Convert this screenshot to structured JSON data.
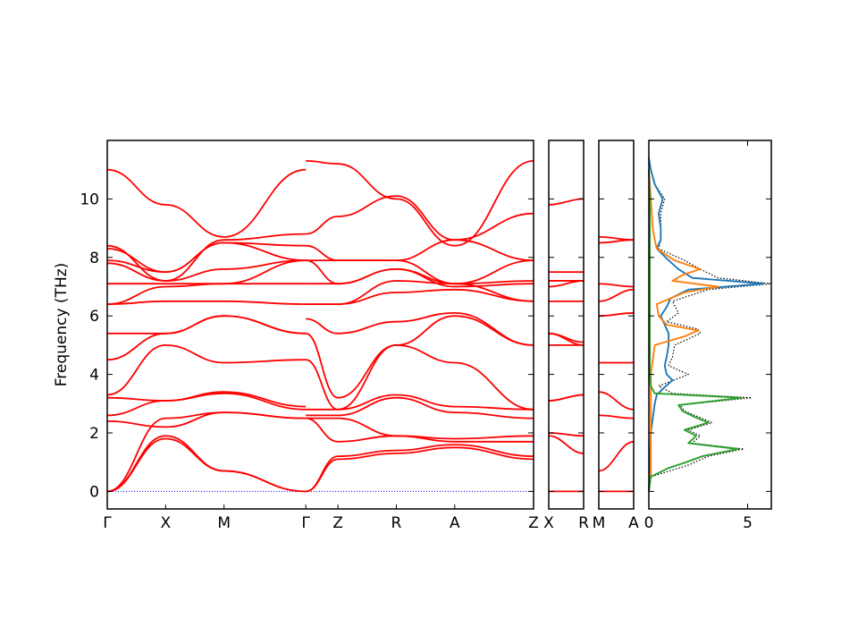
{
  "chart_data": {
    "type": "line",
    "ylabel": "Frequency (THz)",
    "ylim": [
      -0.6,
      12.0
    ],
    "yticks": [
      0,
      2,
      4,
      6,
      8,
      10
    ],
    "grid": false,
    "colors": {
      "bands": "#ff0000",
      "zero_line": "#0000ff",
      "dos_total": "#000000",
      "dos_blue": "#1f77b4",
      "dos_orange": "#ff7f0e",
      "dos_green": "#2ca02c"
    },
    "band_panels": [
      {
        "labels": [
          "Γ",
          "X",
          "M",
          "Γ",
          "Z",
          "R",
          "A",
          "Z"
        ],
        "label_positions": [
          0,
          1,
          2,
          3.4,
          3.95,
          4.95,
          5.95,
          7.3
        ],
        "xlim": [
          0,
          7.3
        ],
        "segments": [
          {
            "x": [
              0,
              1,
              2,
              3.4
            ],
            "bands": [
              [
                0,
                1.8,
                0.7,
                0
              ],
              [
                0,
                1.9,
                0.7,
                0
              ],
              [
                0,
                2.5,
                2.7,
                2.5
              ],
              [
                2.4,
                2.2,
                2.7,
                2.5
              ],
              [
                2.6,
                3.1,
                3.35,
                2.8
              ],
              [
                3.2,
                3.1,
                3.4,
                2.9
              ],
              [
                3.3,
                5.0,
                4.4,
                4.5
              ],
              [
                4.5,
                5.4,
                6.0,
                5.4
              ],
              [
                5.4,
                5.4,
                6.0,
                5.4
              ],
              [
                6.4,
                6.5,
                6.5,
                6.4
              ],
              [
                6.4,
                7.0,
                7.1,
                7.9
              ],
              [
                7.1,
                7.1,
                7.1,
                7.1
              ],
              [
                7.8,
                7.2,
                7.6,
                7.9
              ],
              [
                7.9,
                7.5,
                8.5,
                7.9
              ],
              [
                8.3,
                7.5,
                8.5,
                8.4
              ],
              [
                8.4,
                7.2,
                8.6,
                8.8
              ],
              [
                11.0,
                9.8,
                8.7,
                11.0
              ]
            ]
          },
          {
            "x": [
              3.4,
              3.95,
              4.95,
              5.95,
              7.3
            ],
            "bands": [
              [
                0,
                1.1,
                1.3,
                1.5,
                1.1
              ],
              [
                0,
                1.2,
                1.4,
                1.6,
                1.2
              ],
              [
                2.5,
                1.7,
                1.9,
                1.7,
                1.7
              ],
              [
                2.5,
                2.5,
                1.9,
                1.8,
                1.9
              ],
              [
                2.6,
                2.6,
                3.2,
                2.7,
                2.5
              ],
              [
                2.8,
                2.8,
                3.3,
                2.9,
                2.8
              ],
              [
                4.5,
                2.8,
                5.0,
                4.4,
                2.8
              ],
              [
                5.4,
                3.2,
                5.0,
                6.0,
                5.0
              ],
              [
                5.9,
                5.4,
                5.8,
                6.1,
                5.0
              ],
              [
                6.4,
                6.4,
                6.8,
                6.9,
                6.5
              ],
              [
                6.4,
                6.4,
                7.2,
                7.1,
                6.5
              ],
              [
                7.1,
                7.1,
                7.6,
                7.0,
                7.1
              ],
              [
                7.9,
                7.1,
                7.6,
                7.1,
                7.2
              ],
              [
                7.9,
                7.9,
                7.9,
                7.1,
                7.9
              ],
              [
                8.4,
                7.9,
                7.9,
                8.6,
                7.9
              ],
              [
                8.8,
                9.4,
                10.1,
                8.6,
                9.5
              ],
              [
                11.3,
                11.2,
                10.0,
                8.4,
                11.3
              ]
            ]
          }
        ]
      },
      {
        "labels": [
          "X",
          "R"
        ],
        "label_positions": [
          0,
          1
        ],
        "xlim": [
          0,
          1
        ],
        "segments": [
          {
            "x": [
              0,
              1
            ],
            "bands": [
              [
                0,
                0
              ],
              [
                1.9,
                1.3
              ],
              [
                2.0,
                1.9
              ],
              [
                3.1,
                3.3
              ],
              [
                3.1,
                3.3
              ],
              [
                5.0,
                5.0
              ],
              [
                5.4,
                5.1
              ],
              [
                5.4,
                5.0
              ],
              [
                6.5,
                6.5
              ],
              [
                7.0,
                7.2
              ],
              [
                7.2,
                7.2
              ],
              [
                7.5,
                7.5
              ],
              [
                9.8,
                10.0
              ]
            ]
          }
        ]
      },
      {
        "labels": [
          "M",
          "A"
        ],
        "label_positions": [
          0,
          1
        ],
        "xlim": [
          0,
          1
        ],
        "segments": [
          {
            "x": [
              0,
              1
            ],
            "bands": [
              [
                0,
                0
              ],
              [
                0.7,
                1.7
              ],
              [
                2.6,
                2.5
              ],
              [
                3.4,
                2.8
              ],
              [
                4.4,
                4.4
              ],
              [
                6.0,
                6.1
              ],
              [
                6.5,
                6.9
              ],
              [
                7.1,
                7.0
              ],
              [
                8.5,
                8.6
              ],
              [
                8.7,
                8.6
              ]
            ]
          }
        ]
      }
    ],
    "dos_panel": {
      "xlim": [
        0,
        6.2
      ],
      "xticks": [
        0,
        5
      ],
      "series": [
        {
          "color_key": "dos_total",
          "style": "dotted",
          "freq": [
            0,
            0.5,
            0.9,
            1.2,
            1.45,
            1.65,
            1.9,
            2.1,
            2.35,
            2.55,
            2.75,
            2.95,
            3.2,
            3.35,
            3.6,
            4.0,
            4.3,
            4.6,
            5.0,
            5.4,
            5.55,
            5.8,
            6.1,
            6.5,
            6.9,
            7.1,
            7.3,
            7.6,
            7.9,
            8.3,
            8.6,
            9.0,
            9.5,
            10.0,
            10.5,
            11.0,
            11.4
          ],
          "dos": [
            0,
            0.1,
            2.0,
            3.0,
            4.8,
            2.2,
            2.6,
            2.0,
            3.2,
            2.5,
            1.8,
            1.6,
            5.2,
            1.2,
            0.5,
            2.0,
            1.0,
            1.2,
            1.3,
            2.6,
            2.5,
            0.9,
            1.5,
            1.2,
            3.0,
            6.2,
            3.5,
            2.6,
            1.8,
            0.5,
            0.6,
            0.6,
            0.6,
            0.8,
            0.3,
            0.1,
            0
          ]
        },
        {
          "color_key": "dos_blue",
          "style": "solid",
          "freq": [
            0,
            1.0,
            2.0,
            2.5,
            3.0,
            3.3,
            3.5,
            3.8,
            4.0,
            4.3,
            4.6,
            5.0,
            5.4,
            5.7,
            6.0,
            6.3,
            6.6,
            6.9,
            7.1,
            7.3,
            7.6,
            7.9,
            8.3,
            8.6,
            9.0,
            9.5,
            10.0,
            10.5,
            11.0,
            11.4
          ],
          "dos": [
            0,
            0.05,
            0.1,
            0.2,
            0.3,
            0.4,
            0.7,
            1.2,
            0.9,
            0.8,
            0.9,
            1.0,
            1.0,
            0.8,
            0.6,
            0.9,
            1.1,
            2.0,
            5.8,
            2.2,
            1.5,
            1.0,
            0.4,
            0.6,
            0.6,
            0.5,
            0.7,
            0.3,
            0.1,
            0
          ]
        },
        {
          "color_key": "dos_orange",
          "style": "solid",
          "freq": [
            0,
            0.5,
            1.0,
            2.0,
            3.0,
            3.5,
            4.0,
            4.5,
            5.0,
            5.3,
            5.5,
            5.7,
            6.0,
            6.4,
            6.8,
            7.0,
            7.2,
            7.4,
            7.6,
            7.9,
            8.3,
            8.6,
            9.0,
            10.0,
            10.5,
            11.0
          ],
          "dos": [
            0,
            0.1,
            0.1,
            0.1,
            0.1,
            0.1,
            0.1,
            0.2,
            0.3,
            1.8,
            2.5,
            0.9,
            0.5,
            0.4,
            1.8,
            3.5,
            1.2,
            1.7,
            2.6,
            1.3,
            0.4,
            0.3,
            0.2,
            0.1,
            0.05,
            0
          ]
        },
        {
          "color_key": "dos_green",
          "style": "solid",
          "freq": [
            0,
            0.5,
            0.8,
            1.0,
            1.2,
            1.45,
            1.65,
            1.9,
            2.1,
            2.35,
            2.55,
            2.75,
            2.95,
            3.2,
            3.35,
            3.6,
            4.0,
            5.0,
            6.0,
            7.0,
            8.0,
            9.0,
            10.0,
            11.0
          ],
          "dos": [
            0,
            0.1,
            1.0,
            1.9,
            2.7,
            4.5,
            2.0,
            2.4,
            1.8,
            3.0,
            2.3,
            1.7,
            1.5,
            4.7,
            0.3,
            0.1,
            0.05,
            0.05,
            0.05,
            0.05,
            0.05,
            0.05,
            0.05,
            0
          ]
        }
      ]
    }
  }
}
